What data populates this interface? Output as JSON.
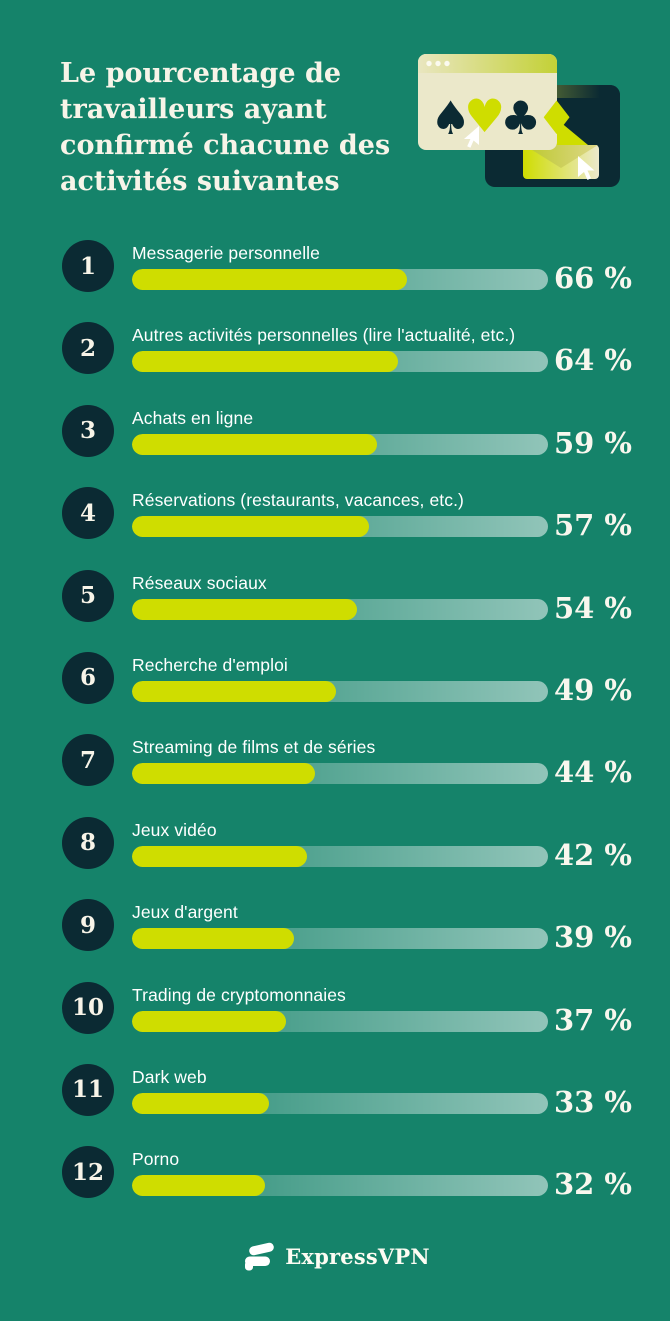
{
  "page": {
    "background_color": "#15836a",
    "accent_color": "#cfdd00",
    "dark_color": "#0b2a33",
    "cream_color": "#ebe8ca"
  },
  "header": {
    "title": "Le pourcentage de travailleurs ayant confirmé chacune des activités suivantes",
    "title_lines": [
      "Le pourcentage de",
      "travailleurs ayant",
      "confirmé chacune des",
      "activités suivantes"
    ]
  },
  "illustration": {
    "suits": [
      "♠",
      "♥",
      "♣",
      "♦"
    ],
    "icons": [
      "browser-window",
      "card-suits",
      "cursor",
      "dark-window",
      "envelope"
    ]
  },
  "chart_data": {
    "type": "bar",
    "orientation": "horizontal",
    "title": "Le pourcentage de travailleurs ayant confirmé chacune des activités suivantes",
    "categories": [
      "Messagerie personnelle",
      "Autres activités personnelles (lire l'actualité, etc.)",
      "Achats en ligne",
      "Réservations (restaurants, vacances, etc.)",
      "Réseaux sociaux",
      "Recherche d'emploi",
      "Streaming de films et de séries",
      "Jeux vidéo",
      "Jeux d'argent",
      "Trading de cryptomonnaies",
      "Dark web",
      "Porno"
    ],
    "values": [
      66,
      64,
      59,
      57,
      54,
      49,
      44,
      42,
      39,
      37,
      33,
      32
    ],
    "value_suffix": " %",
    "xlim": [
      0,
      100
    ],
    "bar_color": "#cfdd00",
    "track_gradient": [
      "rgba(255,255,255,0.07)",
      "rgba(255,255,255,0.53)"
    ],
    "grid": false,
    "legend": false
  },
  "rows": [
    {
      "rank": "1",
      "label": "Messagerie personnelle",
      "value": 66,
      "display": "66 %"
    },
    {
      "rank": "2",
      "label": "Autres activités personnelles (lire l'actualité, etc.)",
      "value": 64,
      "display": "64 %"
    },
    {
      "rank": "3",
      "label": "Achats en ligne",
      "value": 59,
      "display": "59 %"
    },
    {
      "rank": "4",
      "label": "Réservations (restaurants, vacances, etc.)",
      "value": 57,
      "display": "57 %"
    },
    {
      "rank": "5",
      "label": "Réseaux sociaux",
      "value": 54,
      "display": "54 %"
    },
    {
      "rank": "6",
      "label": "Recherche d'emploi",
      "value": 49,
      "display": "49 %"
    },
    {
      "rank": "7",
      "label": "Streaming de films et de séries",
      "value": 44,
      "display": "44 %"
    },
    {
      "rank": "8",
      "label": "Jeux vidéo",
      "value": 42,
      "display": "42 %"
    },
    {
      "rank": "9",
      "label": "Jeux d'argent",
      "value": 39,
      "display": "39 %"
    },
    {
      "rank": "10",
      "label": "Trading de cryptomonnaies",
      "value": 37,
      "display": "37 %"
    },
    {
      "rank": "11",
      "label": "Dark web",
      "value": 33,
      "display": "33 %"
    },
    {
      "rank": "12",
      "label": "Porno",
      "value": 32,
      "display": "32 %"
    }
  ],
  "footer": {
    "brand": "ExpressVPN"
  }
}
